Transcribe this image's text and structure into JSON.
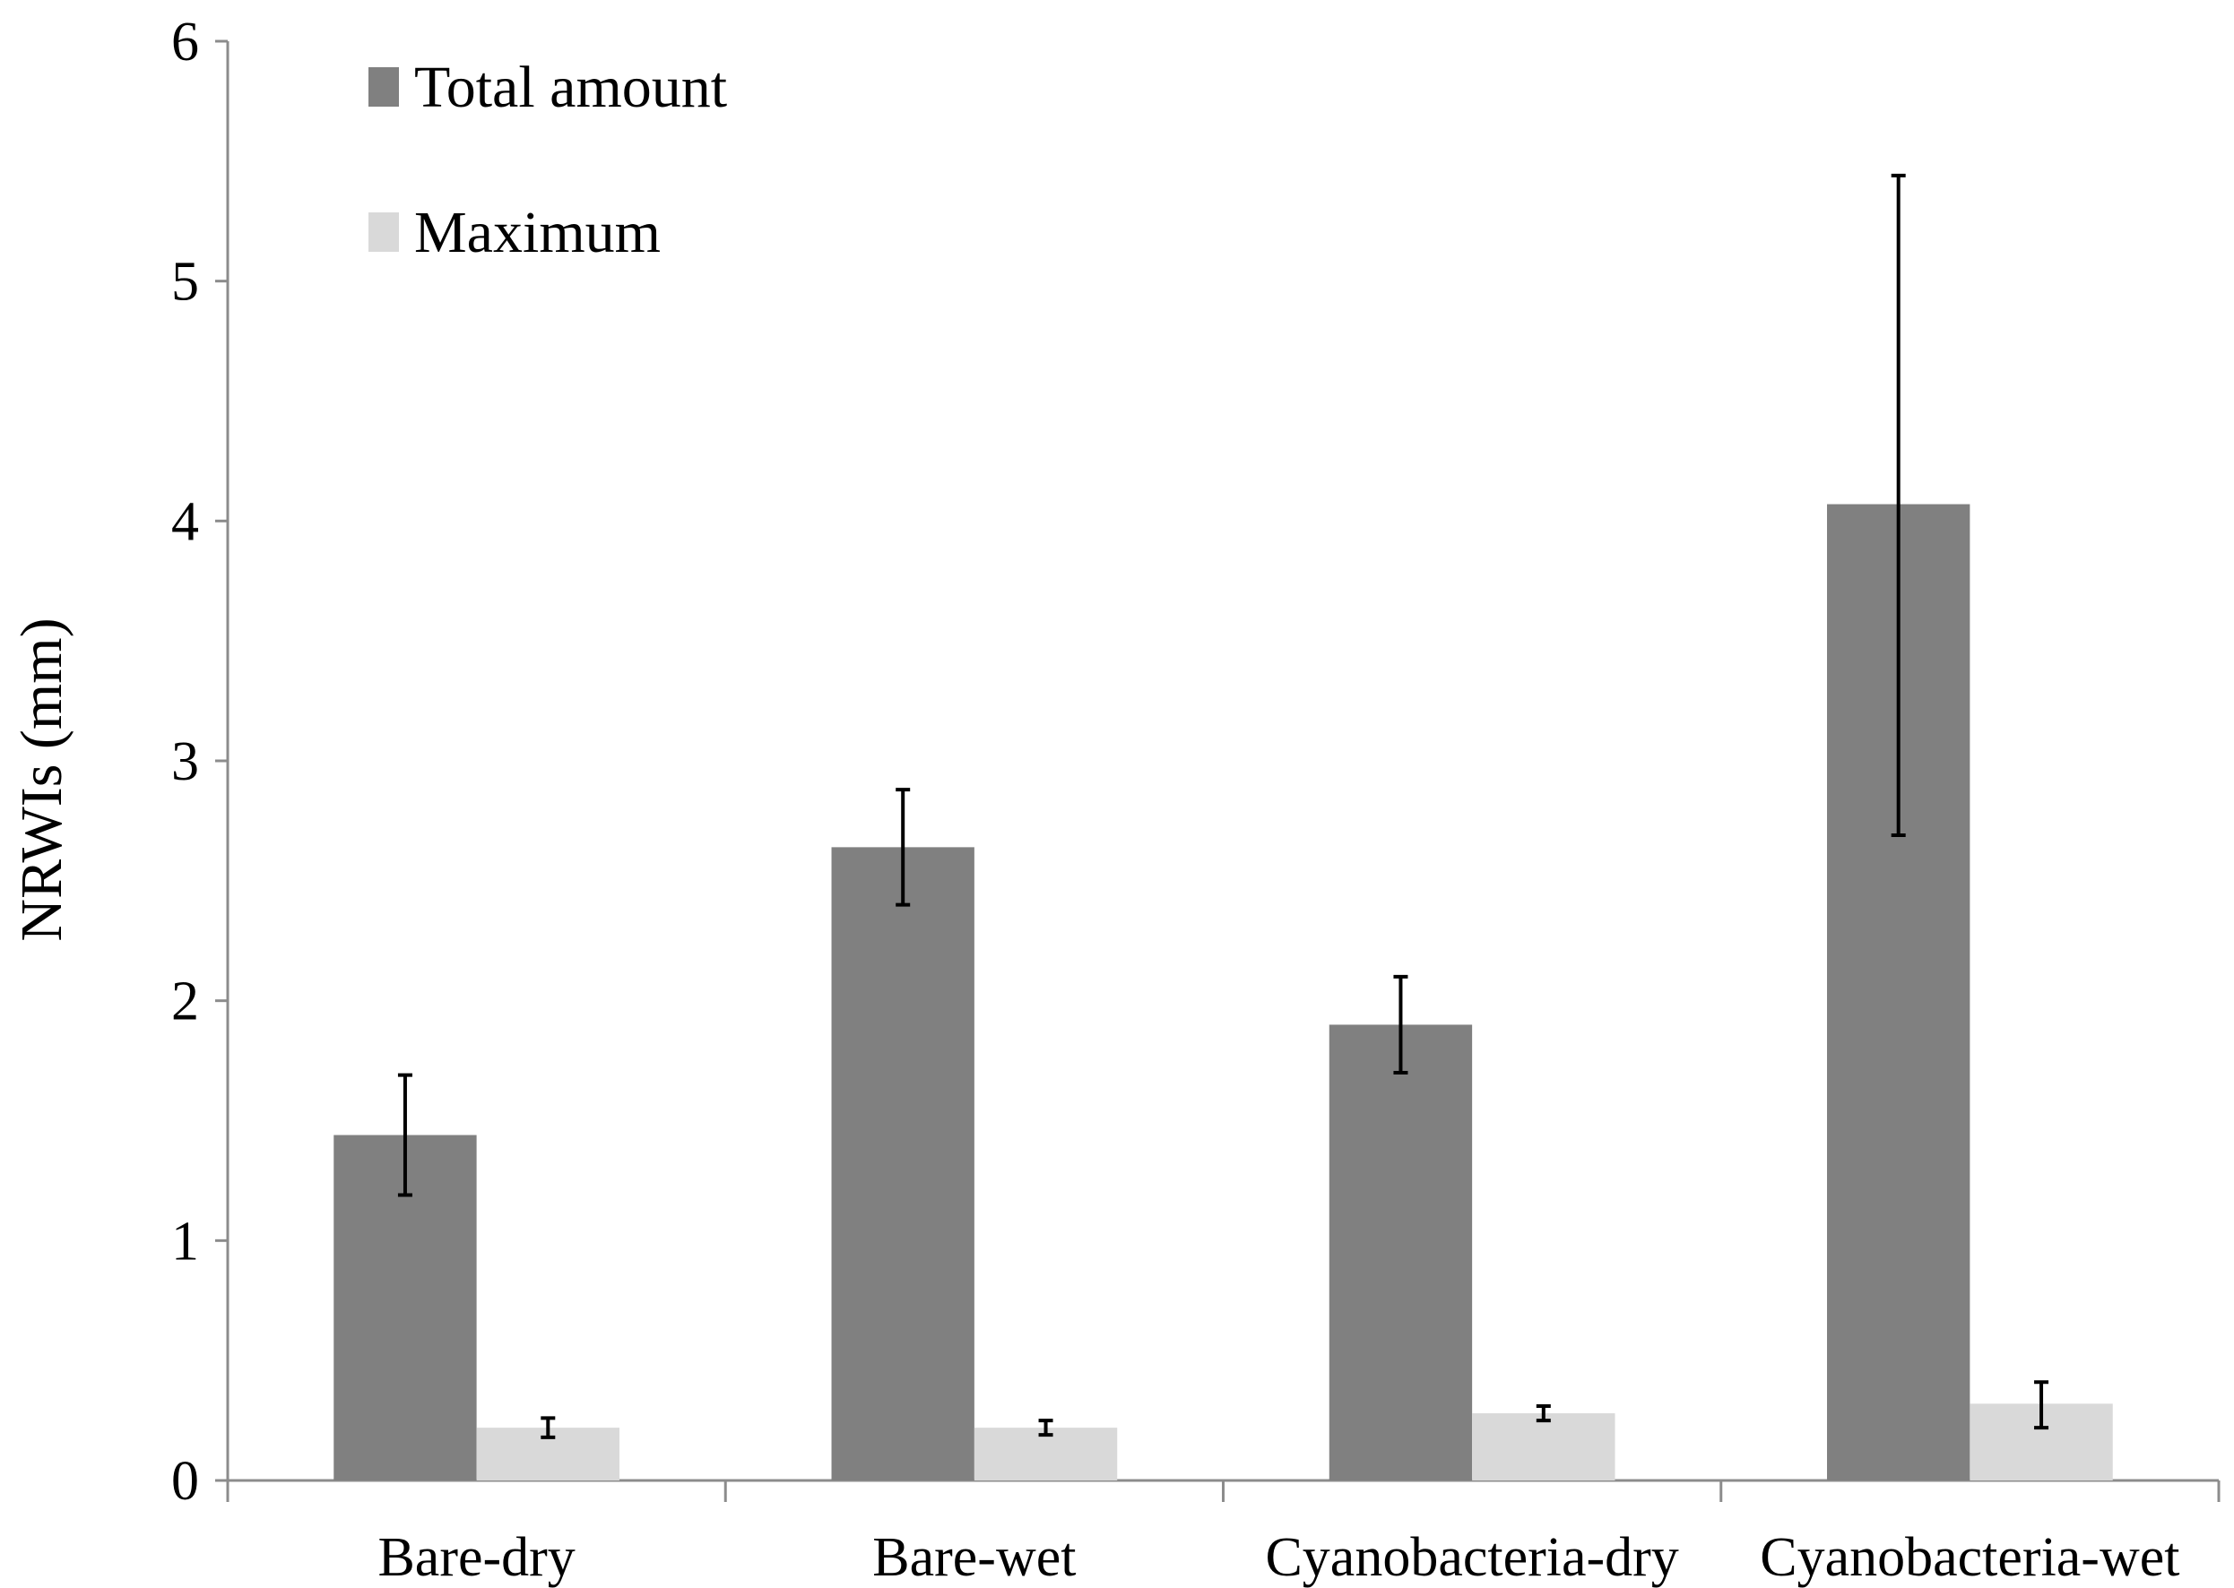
{
  "chart_data": {
    "type": "bar",
    "title": "",
    "xlabel": "",
    "ylabel": "NRWIs  (mm)",
    "ylim": [
      0,
      6
    ],
    "yticks": [
      0,
      1,
      2,
      3,
      4,
      5,
      6
    ],
    "grid": false,
    "legend_position": "top-left",
    "categories": [
      "Bare-dry",
      "Bare-wet",
      "Cyanobacteria-dry",
      "Cyanobacteria-wet"
    ],
    "series": [
      {
        "name": "Total amount",
        "color": "#808080",
        "values": [
          1.44,
          2.64,
          1.9,
          4.07
        ],
        "error_low": [
          1.19,
          2.4,
          1.7,
          2.69
        ],
        "error_high": [
          1.69,
          2.88,
          2.1,
          5.44
        ]
      },
      {
        "name": "Maximum",
        "color": "#d9d9d9",
        "values": [
          0.22,
          0.22,
          0.28,
          0.32
        ],
        "error_low": [
          0.18,
          0.19,
          0.25,
          0.22
        ],
        "error_high": [
          0.26,
          0.25,
          0.31,
          0.41
        ]
      }
    ]
  }
}
